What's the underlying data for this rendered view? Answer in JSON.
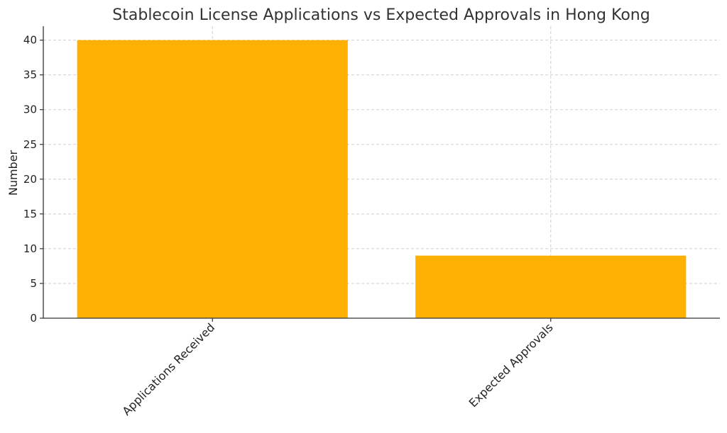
{
  "chart_data": {
    "type": "bar",
    "title": "Stablecoin License Applications vs Expected Approvals in Hong Kong",
    "xlabel": "",
    "ylabel": "Number",
    "categories": [
      "Applications Received",
      "Expected Approvals"
    ],
    "values": [
      40,
      9
    ],
    "ylim": [
      0,
      42
    ],
    "yticks": [
      0,
      5,
      10,
      15,
      20,
      25,
      30,
      35,
      40
    ],
    "bar_color": "#FFB000",
    "grid": true,
    "legend": "none"
  }
}
